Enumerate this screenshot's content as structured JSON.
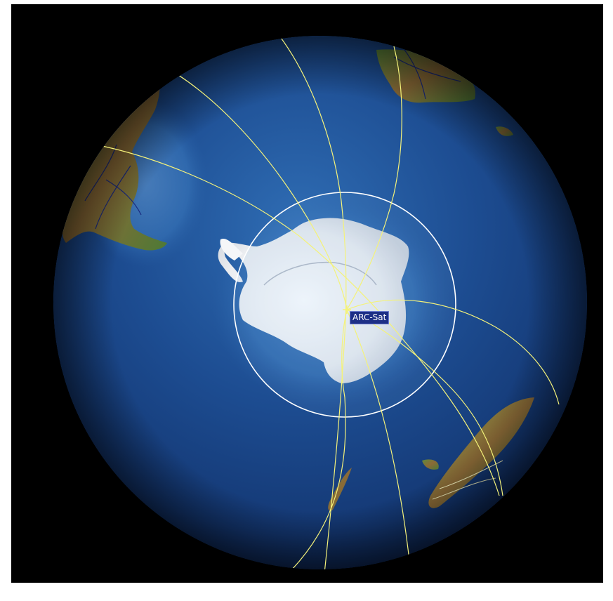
{
  "satellite": {
    "name": "ARC-Sat"
  },
  "colors": {
    "background": "#000000",
    "ocean_deep": "#0b1f4a",
    "ocean_mid": "#1f4f93",
    "ocean_shallow": "#4f8fd0",
    "ice": "#f2f3f5",
    "land_green": "#4f7f3a",
    "land_brown": "#8a5a2e",
    "orbit_track": "#f4f27a",
    "coverage_circle": "#ffffff",
    "label_bg": "#1d2f86",
    "border_lines": "#1a2a80"
  },
  "icons": {
    "satellite_marker": "satellite-position-icon"
  }
}
